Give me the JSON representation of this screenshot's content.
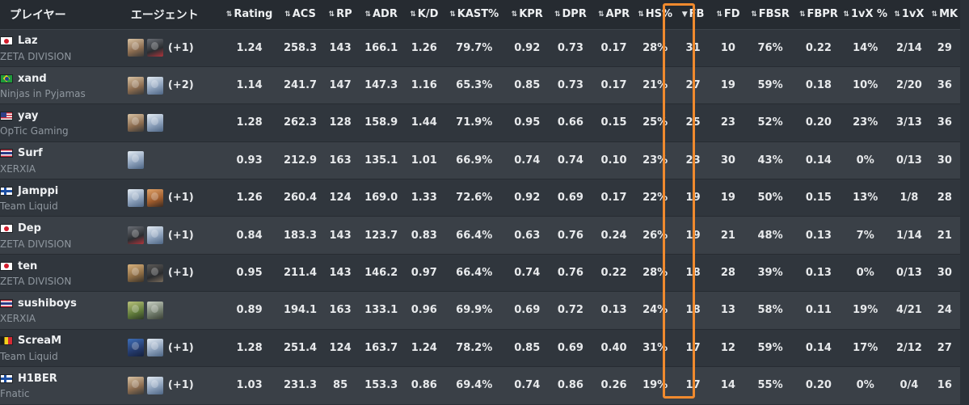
{
  "columns": [
    {
      "key": "player",
      "label": "プレイヤー",
      "sortable": false
    },
    {
      "key": "agents",
      "label": "エージェント",
      "sortable": false
    },
    {
      "key": "rating",
      "label": "Rating",
      "sortable": true
    },
    {
      "key": "acs",
      "label": "ACS",
      "sortable": true
    },
    {
      "key": "rp",
      "label": "RP",
      "sortable": true
    },
    {
      "key": "adr",
      "label": "ADR",
      "sortable": true
    },
    {
      "key": "kd",
      "label": "K/D",
      "sortable": true
    },
    {
      "key": "kast",
      "label": "KAST%",
      "sortable": true
    },
    {
      "key": "kpr",
      "label": "KPR",
      "sortable": true
    },
    {
      "key": "dpr",
      "label": "DPR",
      "sortable": true
    },
    {
      "key": "apr",
      "label": "APR",
      "sortable": true
    },
    {
      "key": "hs",
      "label": "HS%",
      "sortable": true
    },
    {
      "key": "fb",
      "label": "FB",
      "sortable": true,
      "active_sort": "desc"
    },
    {
      "key": "fd",
      "label": "FD",
      "sortable": true
    },
    {
      "key": "fbsr",
      "label": "FBSR",
      "sortable": true
    },
    {
      "key": "fbpr",
      "label": "FBPR",
      "sortable": true
    },
    {
      "key": "clutch_pct",
      "label": "1vX %",
      "sortable": true
    },
    {
      "key": "clutch",
      "label": "1vX",
      "sortable": true
    },
    {
      "key": "mk",
      "label": "MK",
      "sortable": true
    }
  ],
  "sort_icons": {
    "both": "sort-both-icon",
    "desc": "sort-desc-icon"
  },
  "highlight_color": "#f08a2e",
  "rows": [
    {
      "name": "Laz",
      "flag": "jp",
      "team": "ZETA DIVISION",
      "agents": [
        "a",
        "b"
      ],
      "extra": "(+1)",
      "stats": [
        "1.24",
        "258.3",
        "143",
        "166.1",
        "1.26",
        "79.7%",
        "0.92",
        "0.73",
        "0.17",
        "28%",
        "31",
        "10",
        "76%",
        "0.22",
        "14%",
        "2/14",
        "29"
      ]
    },
    {
      "name": "xand",
      "flag": "br",
      "team": "Ninjas in Pyjamas",
      "agents": [
        "a",
        "c"
      ],
      "extra": "(+2)",
      "stats": [
        "1.14",
        "241.7",
        "147",
        "147.3",
        "1.16",
        "65.3%",
        "0.85",
        "0.73",
        "0.17",
        "21%",
        "27",
        "19",
        "59%",
        "0.18",
        "10%",
        "2/20",
        "36"
      ]
    },
    {
      "name": "yay",
      "flag": "us",
      "team": "OpTic Gaming",
      "agents": [
        "a",
        "c"
      ],
      "extra": "",
      "stats": [
        "1.28",
        "262.3",
        "128",
        "158.9",
        "1.44",
        "71.9%",
        "0.95",
        "0.66",
        "0.15",
        "25%",
        "25",
        "23",
        "52%",
        "0.20",
        "23%",
        "3/13",
        "36"
      ]
    },
    {
      "name": "Surf",
      "flag": "th",
      "team": "XERXIA",
      "agents": [
        "c"
      ],
      "extra": "",
      "stats": [
        "0.93",
        "212.9",
        "163",
        "135.1",
        "1.01",
        "66.9%",
        "0.74",
        "0.74",
        "0.10",
        "23%",
        "23",
        "30",
        "43%",
        "0.14",
        "0%",
        "0/13",
        "30"
      ]
    },
    {
      "name": "Jamppi",
      "flag": "fi",
      "team": "Team Liquid",
      "agents": [
        "c",
        "d"
      ],
      "extra": "(+1)",
      "stats": [
        "1.26",
        "260.4",
        "124",
        "169.0",
        "1.33",
        "72.6%",
        "0.92",
        "0.69",
        "0.17",
        "22%",
        "19",
        "19",
        "50%",
        "0.15",
        "13%",
        "1/8",
        "28"
      ]
    },
    {
      "name": "Dep",
      "flag": "jp",
      "team": "ZETA DIVISION",
      "agents": [
        "b",
        "c"
      ],
      "extra": "(+1)",
      "stats": [
        "0.84",
        "183.3",
        "143",
        "123.7",
        "0.83",
        "66.4%",
        "0.63",
        "0.76",
        "0.24",
        "26%",
        "19",
        "21",
        "48%",
        "0.13",
        "7%",
        "1/14",
        "21"
      ]
    },
    {
      "name": "ten",
      "flag": "jp",
      "team": "ZETA DIVISION",
      "agents": [
        "e",
        "f"
      ],
      "extra": "(+1)",
      "stats": [
        "0.95",
        "211.4",
        "143",
        "146.2",
        "0.97",
        "66.4%",
        "0.74",
        "0.76",
        "0.22",
        "28%",
        "18",
        "28",
        "39%",
        "0.13",
        "0%",
        "0/13",
        "30"
      ]
    },
    {
      "name": "sushiboys",
      "flag": "th",
      "team": "XERXIA",
      "agents": [
        "g",
        "h"
      ],
      "extra": "",
      "stats": [
        "0.89",
        "194.1",
        "163",
        "133.1",
        "0.96",
        "69.9%",
        "0.69",
        "0.72",
        "0.13",
        "24%",
        "18",
        "13",
        "58%",
        "0.11",
        "19%",
        "4/21",
        "24"
      ]
    },
    {
      "name": "ScreaM",
      "flag": "be",
      "team": "Team Liquid",
      "agents": [
        "i",
        "c"
      ],
      "extra": "(+1)",
      "stats": [
        "1.28",
        "251.4",
        "124",
        "163.7",
        "1.24",
        "78.2%",
        "0.85",
        "0.69",
        "0.40",
        "31%",
        "17",
        "12",
        "59%",
        "0.14",
        "17%",
        "2/12",
        "27"
      ]
    },
    {
      "name": "H1BER",
      "flag": "fi",
      "team": "Fnatic",
      "agents": [
        "a",
        "c"
      ],
      "extra": "(+1)",
      "stats": [
        "1.03",
        "231.3",
        "85",
        "153.3",
        "0.86",
        "69.4%",
        "0.74",
        "0.86",
        "0.26",
        "19%",
        "17",
        "14",
        "55%",
        "0.20",
        "0%",
        "0/4",
        "16"
      ]
    }
  ]
}
